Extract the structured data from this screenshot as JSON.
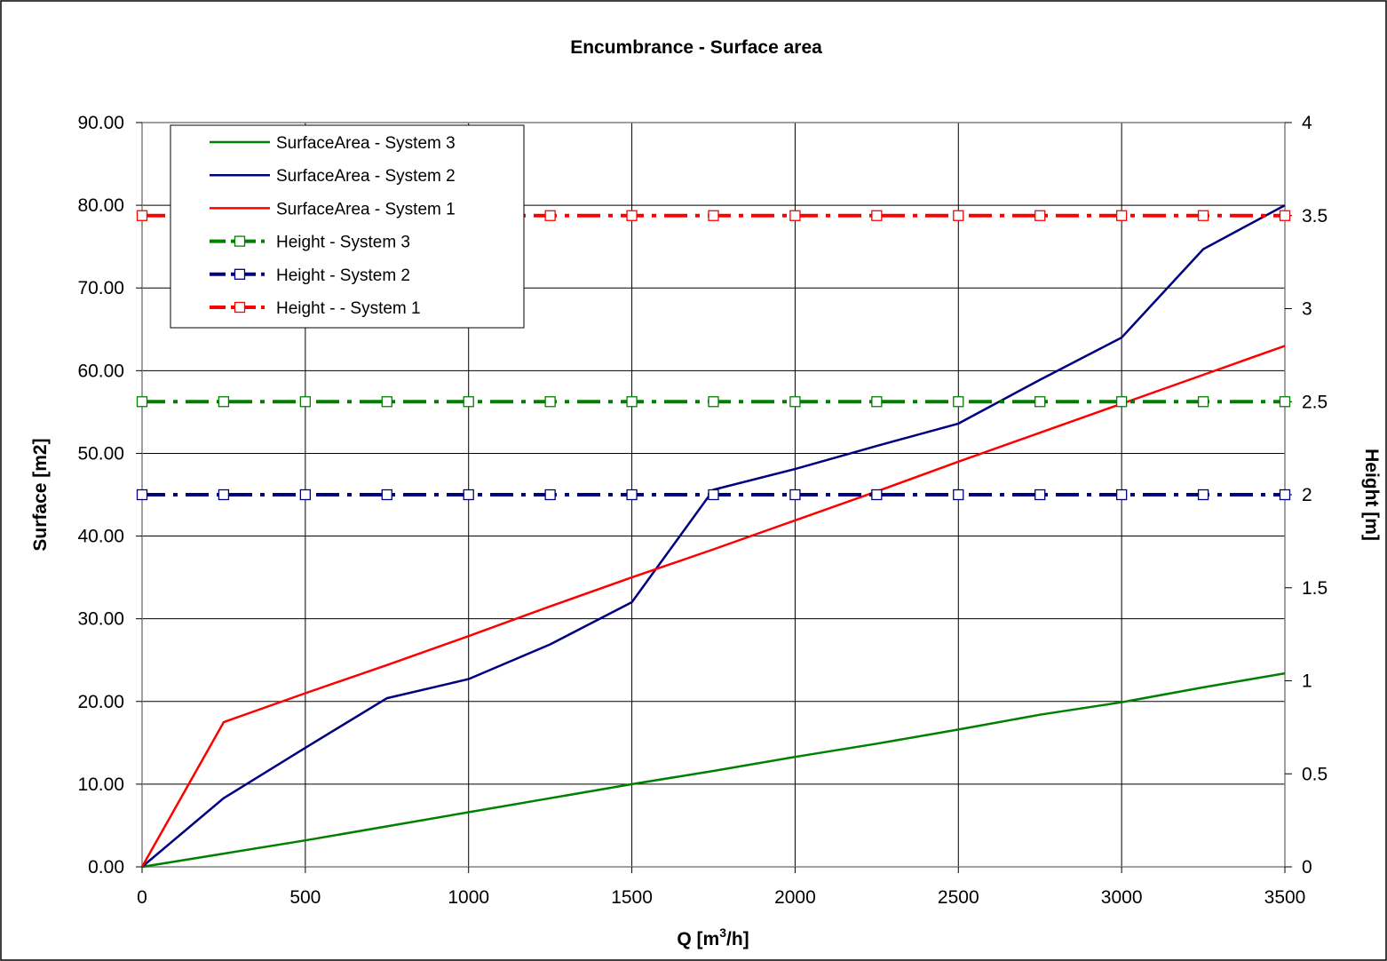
{
  "chart_data": {
    "type": "line",
    "title": "Encumbrance - Surface area",
    "xlabel": "Q [m",
    "xlabel_sup": "3",
    "xlabel_suffix": "/h]",
    "ylabel": "Surface [m2]",
    "y2label": "Height [m]",
    "xlim": [
      0,
      3500
    ],
    "ylim": [
      0,
      90
    ],
    "y2lim": [
      0,
      4
    ],
    "x_ticks": [
      "0",
      "500",
      "1000",
      "1500",
      "2000",
      "2500",
      "3000",
      "3500"
    ],
    "y_ticks": [
      "0.00",
      "10.00",
      "20.00",
      "30.00",
      "40.00",
      "50.00",
      "60.00",
      "70.00",
      "80.00",
      "90.00"
    ],
    "y2_ticks": [
      "0",
      "0.5",
      "1",
      "1.5",
      "2",
      "2.5",
      "3",
      "3.5",
      "4"
    ],
    "grid": true,
    "legend_position": "top-left",
    "x": [
      0,
      250,
      500,
      750,
      1000,
      1250,
      1500,
      1750,
      2000,
      2250,
      2500,
      2750,
      3000,
      3250,
      3500
    ],
    "series": [
      {
        "name": "SurfaceArea - System 3",
        "axis": "left",
        "style": "solid",
        "color": "#008000",
        "values": [
          0,
          1.6,
          3.2,
          4.9,
          6.6,
          8.3,
          10.0,
          11.6,
          13.3,
          14.9,
          16.6,
          18.4,
          19.9,
          21.7,
          23.4
        ]
      },
      {
        "name": "SurfaceArea - System 2",
        "axis": "left",
        "style": "solid",
        "color": "#000080",
        "values": [
          0,
          8.3,
          14.4,
          20.4,
          22.7,
          26.9,
          32.0,
          45.6,
          48.1,
          50.9,
          53.6,
          58.9,
          64.0,
          74.7,
          80.0
        ]
      },
      {
        "name": "SurfaceArea - System 1",
        "axis": "left",
        "style": "solid",
        "color": "#ff0000",
        "values": [
          0,
          17.5,
          21.0,
          24.4,
          27.9,
          31.5,
          35.0,
          38.4,
          41.9,
          45.4,
          49.0,
          52.5,
          56.0,
          59.5,
          63.0
        ]
      },
      {
        "name": "Height - System 3",
        "axis": "right",
        "style": "dashdot-markers",
        "color": "#008000",
        "values": [
          2.5,
          2.5,
          2.5,
          2.5,
          2.5,
          2.5,
          2.5,
          2.5,
          2.5,
          2.5,
          2.5,
          2.5,
          2.5,
          2.5,
          2.5
        ]
      },
      {
        "name": "Height - System 2",
        "axis": "right",
        "style": "dashdot-markers",
        "color": "#000080",
        "values": [
          2,
          2,
          2,
          2,
          2,
          2,
          2,
          2,
          2,
          2,
          2,
          2,
          2,
          2,
          2
        ]
      },
      {
        "name": "Height - - System 1",
        "axis": "right",
        "style": "dashdot-markers",
        "color": "#ff0000",
        "values": [
          3.5,
          3.5,
          3.5,
          3.5,
          3.5,
          3.5,
          3.5,
          3.5,
          3.5,
          3.5,
          3.5,
          3.5,
          3.5,
          3.5,
          3.5
        ]
      }
    ]
  }
}
